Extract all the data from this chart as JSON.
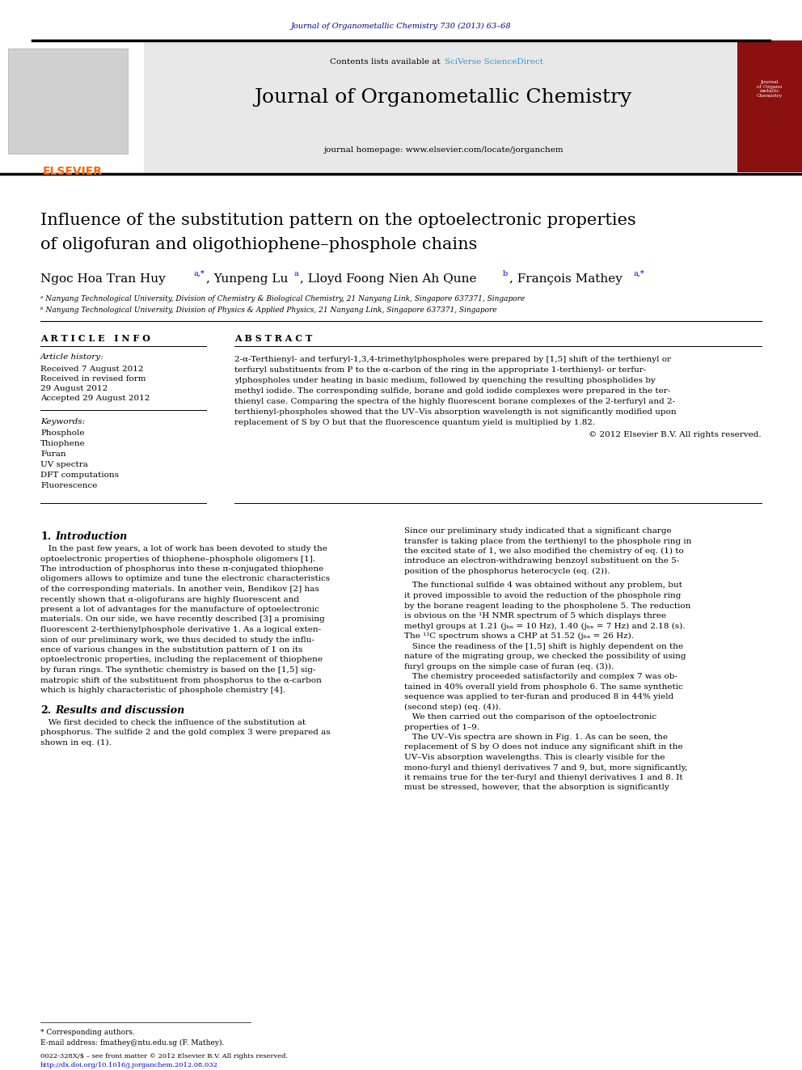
{
  "page_width": 9.92,
  "page_height": 13.23,
  "bg_color": "#ffffff",
  "top_journal_ref": "Journal of Organometallic Chemistry 730 (2013) 63–68",
  "top_journal_ref_color": "#00008B",
  "header_bg": "#e8e8e8",
  "header_contents_text": "Contents lists available at ",
  "header_sciverse": "SciVerse ScienceDirect",
  "header_sciverse_color": "#3399cc",
  "journal_name": "Journal of Organometallic Chemistry",
  "journal_homepage": "journal homepage: www.elsevier.com/locate/jorganchem",
  "elsevier_color": "#FF6600",
  "article_title_line1": "Influence of the substitution pattern on the optoelectronic properties",
  "article_title_line2": "of oligofuran and oligothiophene–phosphole chains",
  "affil_a": "ᵃ Nanyang Technological University, Division of Chemistry & Biological Chemistry, 21 Nanyang Link, Singapore 637371, Singapore",
  "affil_b": "ᵇ Nanyang Technological University, Division of Physics & Applied Physics, 21 Nanyang Link, Singapore 637371, Singapore",
  "article_info_header": "A R T I C L E   I N F O",
  "abstract_header": "A B S T R A C T",
  "article_history_label": "Article history:",
  "received1": "Received 7 August 2012",
  "received2": "Received in revised form",
  "received3": "29 August 2012",
  "accepted": "Accepted 29 August 2012",
  "keywords_label": "Keywords:",
  "keywords": [
    "Phosphole",
    "Thiophene",
    "Furan",
    "UV spectra",
    "DFT computations",
    "Fluorescence"
  ],
  "abstract_copyright": "© 2012 Elsevier B.V. All rights reserved.",
  "footer_note": "* Corresponding authors.",
  "footer_email": "E-mail address: fmathey@ntu.edu.sg (F. Mathey).",
  "footer_issn": "0022-328X/$ – see front matter © 2012 Elsevier B.V. All rights reserved.",
  "footer_doi": "http://dx.doi.org/10.1016/j.jorganchem.2012.08.032"
}
